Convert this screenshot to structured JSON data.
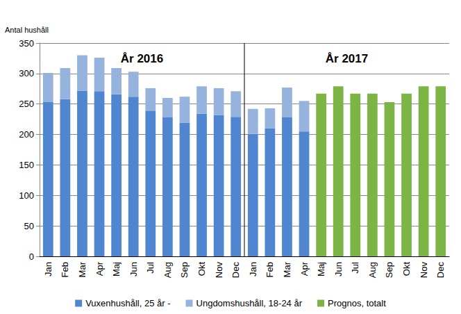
{
  "chart_data": {
    "type": "bar",
    "ylabel": "Antal hushåll",
    "annotations": [
      "År 2016",
      "År 2017"
    ],
    "categories": [
      "Jan",
      "Feb",
      "Mar",
      "Apr",
      "Maj",
      "Jun",
      "Jul",
      "Aug",
      "Sep",
      "Okt",
      "Nov",
      "Dec",
      "Jan",
      "Feb",
      "Mar",
      "Apr",
      "Maj",
      "Jun",
      "Jul",
      "Aug",
      "Sep",
      "Okt",
      "Nov",
      "Dec"
    ],
    "series": [
      {
        "name": "Vuxenhushåll, 25 år -",
        "color": "#4f86cf",
        "values": [
          253,
          258,
          272,
          271,
          266,
          262,
          239,
          228,
          219,
          234,
          232,
          229,
          201,
          210,
          228,
          205,
          null,
          null,
          null,
          null,
          null,
          null,
          null,
          null
        ]
      },
      {
        "name": "Ungdomshushåll, 18-24 år",
        "color": "#95b3dc",
        "values": [
          48,
          51,
          58,
          55,
          43,
          41,
          37,
          32,
          43,
          45,
          44,
          42,
          41,
          33,
          49,
          50,
          null,
          null,
          null,
          null,
          null,
          null,
          null,
          null
        ]
      },
      {
        "name": "Prognos, totalt",
        "color": "#7db446",
        "values": [
          null,
          null,
          null,
          null,
          null,
          null,
          null,
          null,
          null,
          null,
          null,
          null,
          null,
          null,
          null,
          null,
          267,
          279,
          267,
          267,
          253,
          267,
          279,
          279
        ]
      }
    ],
    "stacked": true,
    "ylim": [
      0,
      350
    ],
    "yticks": [
      0,
      50,
      100,
      150,
      200,
      250,
      300,
      350
    ],
    "grid": true,
    "legend": "bottom"
  }
}
